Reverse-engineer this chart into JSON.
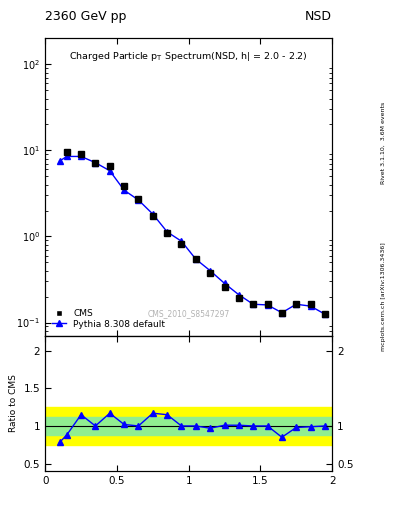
{
  "title_top_left": "2360 GeV pp",
  "title_top_right": "NSD",
  "plot_title": "Charged Particle p_{T} Spectrum(NSD, h| = 2.0 - 2.2)",
  "watermark": "CMS_2010_S8547297",
  "right_label_top": "Rivet 3.1.10,  3.6M events",
  "right_label_bot": "mcplots.cern.ch [arXiv:1306.3436]",
  "cms_x": [
    0.15,
    0.25,
    0.35,
    0.45,
    0.55,
    0.65,
    0.75,
    0.85,
    0.95,
    1.05,
    1.15,
    1.25,
    1.35,
    1.45,
    1.55,
    1.65,
    1.75,
    1.85,
    1.95
  ],
  "cms_y": [
    9.5,
    9.0,
    7.2,
    6.5,
    3.9,
    2.7,
    1.75,
    1.1,
    0.82,
    0.55,
    0.38,
    0.26,
    0.195,
    0.165,
    0.165,
    0.13,
    0.165,
    0.165,
    0.125
  ],
  "pythia_x": [
    0.1,
    0.15,
    0.25,
    0.35,
    0.45,
    0.55,
    0.65,
    0.75,
    0.85,
    0.95,
    1.05,
    1.15,
    1.25,
    1.35,
    1.45,
    1.55,
    1.65,
    1.75,
    1.85,
    1.95
  ],
  "pythia_y": [
    7.5,
    8.5,
    8.5,
    7.2,
    5.8,
    3.45,
    2.65,
    1.82,
    1.13,
    0.88,
    0.545,
    0.4,
    0.285,
    0.21,
    0.163,
    0.16,
    0.13,
    0.163,
    0.155,
    0.125
  ],
  "ratio_x": [
    0.1,
    0.15,
    0.25,
    0.35,
    0.45,
    0.55,
    0.65,
    0.75,
    0.85,
    0.95,
    1.05,
    1.15,
    1.25,
    1.35,
    1.45,
    1.55,
    1.65,
    1.75,
    1.85,
    1.95
  ],
  "ratio_y": [
    0.78,
    0.88,
    1.15,
    1.0,
    1.17,
    1.02,
    1.0,
    1.17,
    1.15,
    1.0,
    1.0,
    0.97,
    1.01,
    1.01,
    1.0,
    1.0,
    0.85,
    0.98,
    0.99,
    1.0
  ],
  "yellow_band_lo": 0.75,
  "yellow_band_hi": 1.25,
  "green_band_lo": 0.88,
  "green_band_hi": 1.12,
  "xlim": [
    0.0,
    2.0
  ],
  "ylim_main": [
    0.07,
    200
  ],
  "ylim_ratio": [
    0.4,
    2.2
  ],
  "ylabel_ratio": "Ratio to CMS",
  "data_color": "black",
  "pythia_color": "blue",
  "background_color": "white"
}
